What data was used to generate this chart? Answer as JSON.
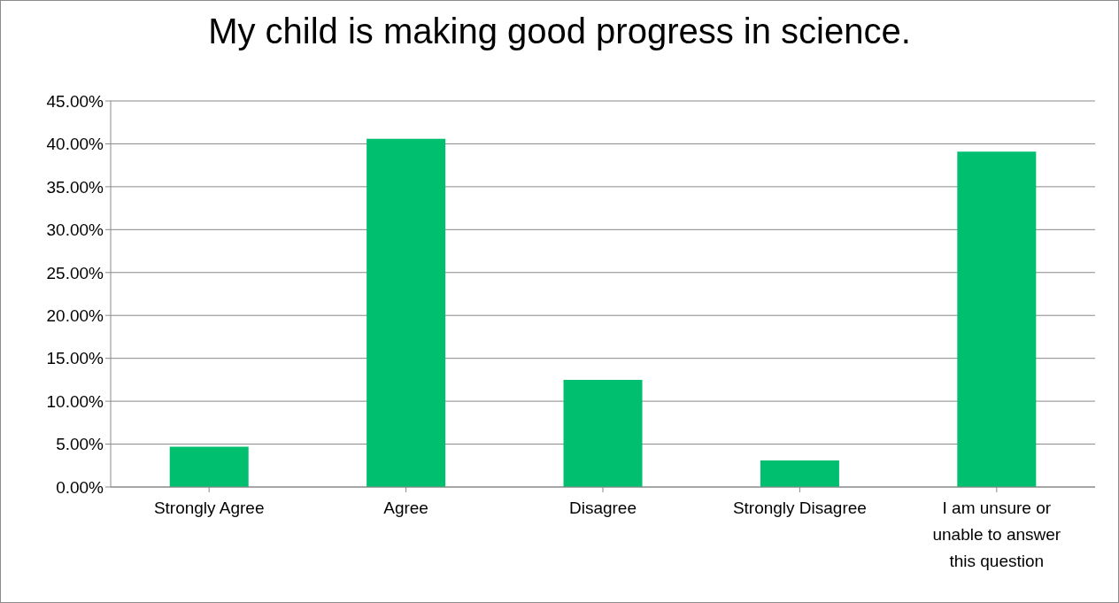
{
  "chart_data": {
    "type": "bar",
    "title": "My child is making good progress in science.",
    "categories": [
      "Strongly Agree",
      "Agree",
      "Disagree",
      "Strongly Disagree",
      "I am unsure or unable to answer this question"
    ],
    "values": [
      4.7,
      40.6,
      12.5,
      3.1,
      39.1
    ],
    "color": "#00c070",
    "ylim": [
      0,
      45
    ],
    "yticks": [
      {
        "value": 0,
        "label": "0.00%"
      },
      {
        "value": 5,
        "label": "5.00%"
      },
      {
        "value": 10,
        "label": "10.00%"
      },
      {
        "value": 15,
        "label": "15.00%"
      },
      {
        "value": 20,
        "label": "20.00%"
      },
      {
        "value": 25,
        "label": "25.00%"
      },
      {
        "value": 30,
        "label": "30.00%"
      },
      {
        "value": 35,
        "label": "35.00%"
      },
      {
        "value": 40,
        "label": "40.00%"
      },
      {
        "value": 45,
        "label": "45.00%"
      }
    ],
    "grid": "y",
    "legend": false
  }
}
